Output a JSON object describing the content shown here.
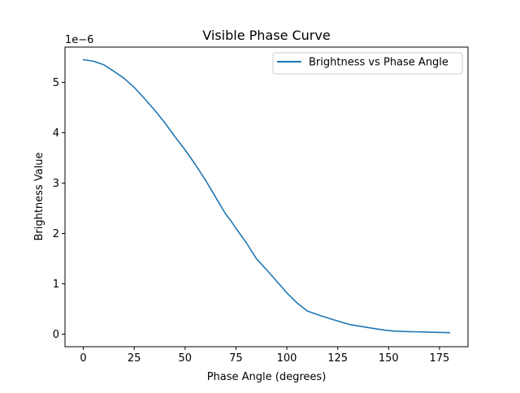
{
  "chart_data": {
    "type": "line",
    "title": "Visible Phase Curve",
    "xlabel": "Phase Angle (degrees)",
    "ylabel": "Brightness Value",
    "y_offset_label": "1e−6",
    "xlim": [
      -9,
      189
    ],
    "ylim": [
      -0.25,
      5.7
    ],
    "x_ticks": [
      0,
      25,
      50,
      75,
      100,
      125,
      150,
      175
    ],
    "x_tick_labels": [
      "0",
      "25",
      "50",
      "75",
      "100",
      "125",
      "150",
      "175"
    ],
    "y_ticks": [
      0,
      1,
      2,
      3,
      4,
      5
    ],
    "y_tick_labels": [
      "0",
      "1",
      "2",
      "3",
      "4",
      "5"
    ],
    "grid": false,
    "legend_position": "top-right",
    "line_color": "#1f77b4",
    "series": [
      {
        "name": "Brightness vs Phase Angle",
        "x": [
          0,
          5,
          10,
          15,
          20,
          25,
          30,
          35,
          40,
          45,
          50,
          55,
          60,
          65,
          70,
          72,
          75,
          80,
          85,
          90,
          95,
          100,
          105,
          110,
          117,
          125,
          131,
          140,
          148,
          153,
          160,
          170,
          180
        ],
        "y": [
          5.45,
          5.42,
          5.35,
          5.22,
          5.08,
          4.9,
          4.68,
          4.45,
          4.2,
          3.92,
          3.66,
          3.37,
          3.06,
          2.72,
          2.38,
          2.28,
          2.1,
          1.82,
          1.5,
          1.28,
          1.05,
          0.82,
          0.62,
          0.46,
          0.36,
          0.26,
          0.19,
          0.13,
          0.08,
          0.06,
          0.05,
          0.04,
          0.03
        ]
      }
    ]
  }
}
